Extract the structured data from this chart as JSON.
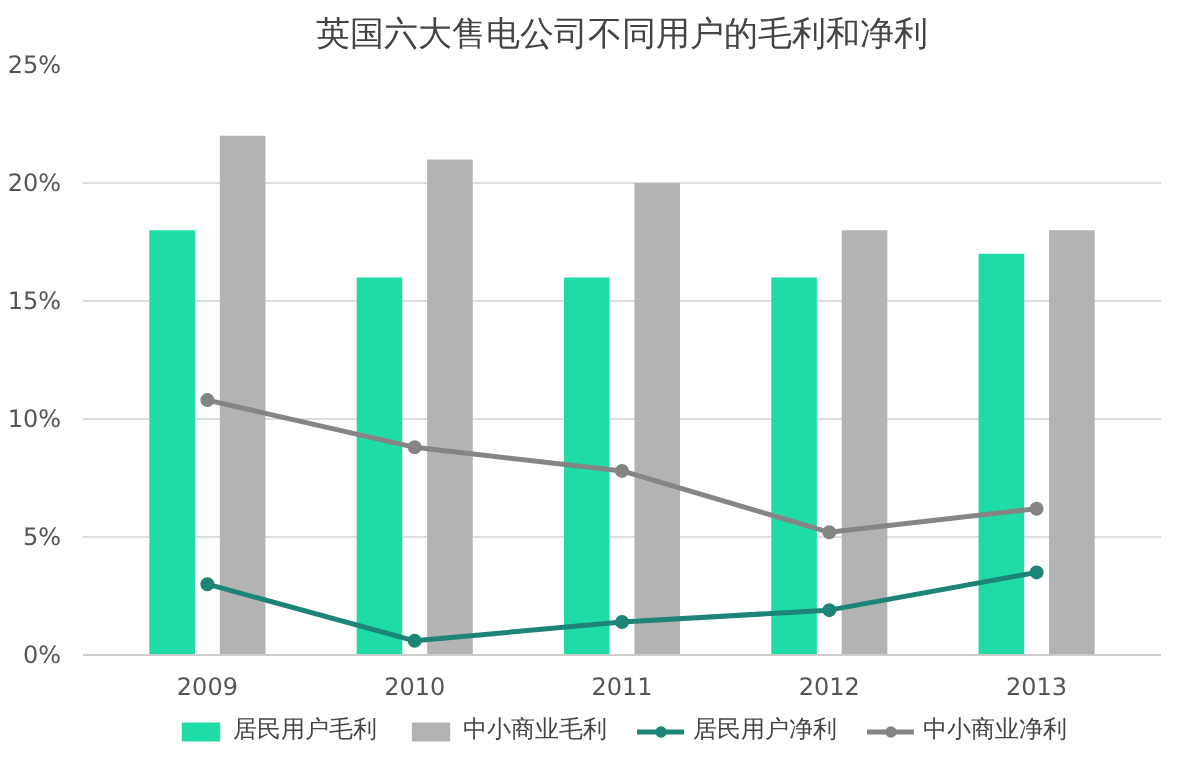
{
  "chart_data": {
    "type": "bar",
    "title": "英国六大售电公司不同用户的毛利和净利",
    "categories": [
      "2009",
      "2010",
      "2011",
      "2012",
      "2013"
    ],
    "series": [
      {
        "name": "居民用户毛利",
        "color": "#1fdca6",
        "values": [
          18,
          16,
          16,
          16,
          17
        ]
      },
      {
        "name": "中小商业毛利",
        "color": "#b3b3b3",
        "values": [
          22,
          21,
          20,
          18,
          18
        ]
      },
      {
        "name": "居民用户净利",
        "type": "line",
        "color": "#1c8577",
        "values": [
          3.0,
          0.6,
          1.4,
          1.9,
          3.5
        ]
      },
      {
        "name": "中小商业净利",
        "type": "line",
        "color": "#858585",
        "values": [
          10.8,
          8.8,
          7.8,
          5.2,
          6.2
        ]
      }
    ],
    "ylim": [
      0,
      25
    ],
    "yticks": [
      {
        "value": 0,
        "label": "0%"
      },
      {
        "value": 5,
        "label": "5%"
      },
      {
        "value": 10,
        "label": "10%"
      },
      {
        "value": 15,
        "label": "15%"
      },
      {
        "value": 20,
        "label": "20%"
      },
      {
        "value": 25,
        "label": "25%"
      }
    ],
    "grid": "y",
    "legend": "bottom",
    "marker": "circle"
  }
}
